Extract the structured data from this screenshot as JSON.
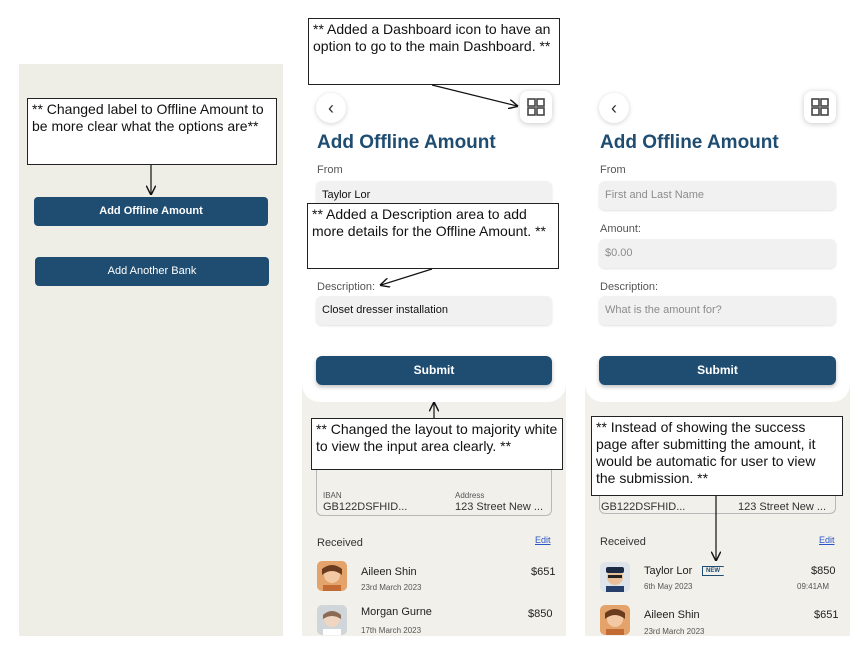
{
  "annotations": {
    "dashboard_note": "** Added a Dashboard icon to have an option to go to the main Dashboard. **",
    "label_note": "** Changed label to Offline Amount to be more clear what the options are**",
    "description_note": "** Added a Description area to add more details for the Offline Amount. **",
    "layout_note": "** Changed the layout to majority white to view the input area clearly. **",
    "success_note": "** Instead of showing the success page after submitting the amount, it would be automatic for user to view the submission. **"
  },
  "screen1": {
    "add_offline_label": "Add Offline Amount",
    "add_bank_label": "Add  Another Bank"
  },
  "screen2": {
    "title": "Add Offline Amount",
    "from_label": "From",
    "from_value": "Taylor Lor",
    "description_label": "Description:",
    "description_value": "Closet dresser installation",
    "submit_label": "Submit",
    "iban_label": "IBAN",
    "iban_value": "GB122DSFHID...",
    "address_label": "Address",
    "address_value": "123 Street New ...",
    "received_label": "Received",
    "edit_label": "Edit",
    "rows": [
      {
        "name": "Aileen Shin",
        "date": "23rd March 2023",
        "amount": "$651"
      },
      {
        "name": "Morgan Gurne",
        "date": "17th March 2023",
        "amount": "$850"
      }
    ]
  },
  "screen3": {
    "title": "Add Offline Amount",
    "from_label": "From",
    "from_placeholder": "First and Last Name",
    "amount_label": "Amount:",
    "amount_placeholder": "$0.00",
    "description_label": "Description:",
    "description_placeholder": "What is the amount for?",
    "submit_label": "Submit",
    "iban_value": "GB122DSFHID...",
    "address_value": "123 Street New ...",
    "received_label": "Received",
    "edit_label": "Edit",
    "rows": [
      {
        "name": "Taylor Lor",
        "date": "6th May 2023",
        "amount": "$850",
        "time": "09:41AM",
        "badge": "NEW"
      },
      {
        "name": "Aileen Shin",
        "date": "23rd March 2023",
        "amount": "$651"
      }
    ]
  },
  "icons": {
    "back": "chevron-left-icon",
    "dashboard": "dashboard-grid-icon"
  },
  "colors": {
    "primary": "#1f4d72",
    "link": "#2a55c8",
    "panel_bg": "#f1f0ea"
  }
}
